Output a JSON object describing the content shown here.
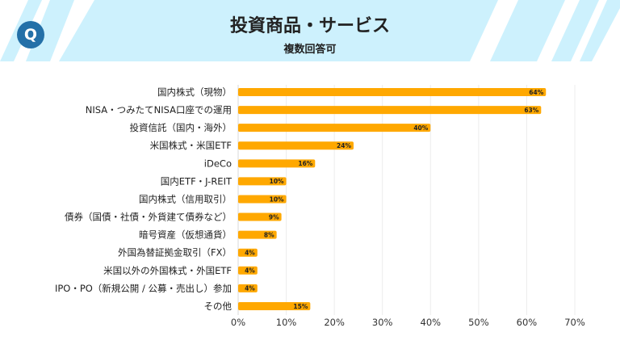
{
  "header": {
    "title": "投資商品・サービス",
    "subtitle": "複数回答可",
    "badge": "Q",
    "band_color": "#cdf1fd",
    "badge_color": "#2470a8"
  },
  "chart_data": {
    "type": "bar",
    "orientation": "horizontal",
    "categories": [
      "国内株式（現物）",
      "NISA・つみたてNISA口座での運用",
      "投資信託（国内・海外）",
      "米国株式・米国ETF",
      "iDeCo",
      "国内ETF・J-REIT",
      "国内株式（信用取引）",
      "債券（国債・社債・外貨建て債券など）",
      "暗号資産（仮想通貨）",
      "外国為替証拠金取引（FX）",
      "米国以外の外国株式・外国ETF",
      "IPO・PO（新規公開 / 公募・売出し）参加",
      "その他"
    ],
    "values": [
      64,
      63,
      40,
      24,
      16,
      10,
      10,
      9,
      8,
      4,
      4,
      4,
      15
    ],
    "data_labels": [
      "64%",
      "63%",
      "40%",
      "24%",
      "16%",
      "10%",
      "10%",
      "9%",
      "8%",
      "4%",
      "4%",
      "4%",
      "15%"
    ],
    "xlim": [
      0,
      70
    ],
    "xticks": [
      0,
      10,
      20,
      30,
      40,
      50,
      60,
      70
    ],
    "xtick_labels": [
      "0%",
      "10%",
      "20%",
      "30%",
      "40%",
      "50%",
      "60%",
      "70%"
    ],
    "grid": true,
    "bar_color": "#ffa800"
  }
}
